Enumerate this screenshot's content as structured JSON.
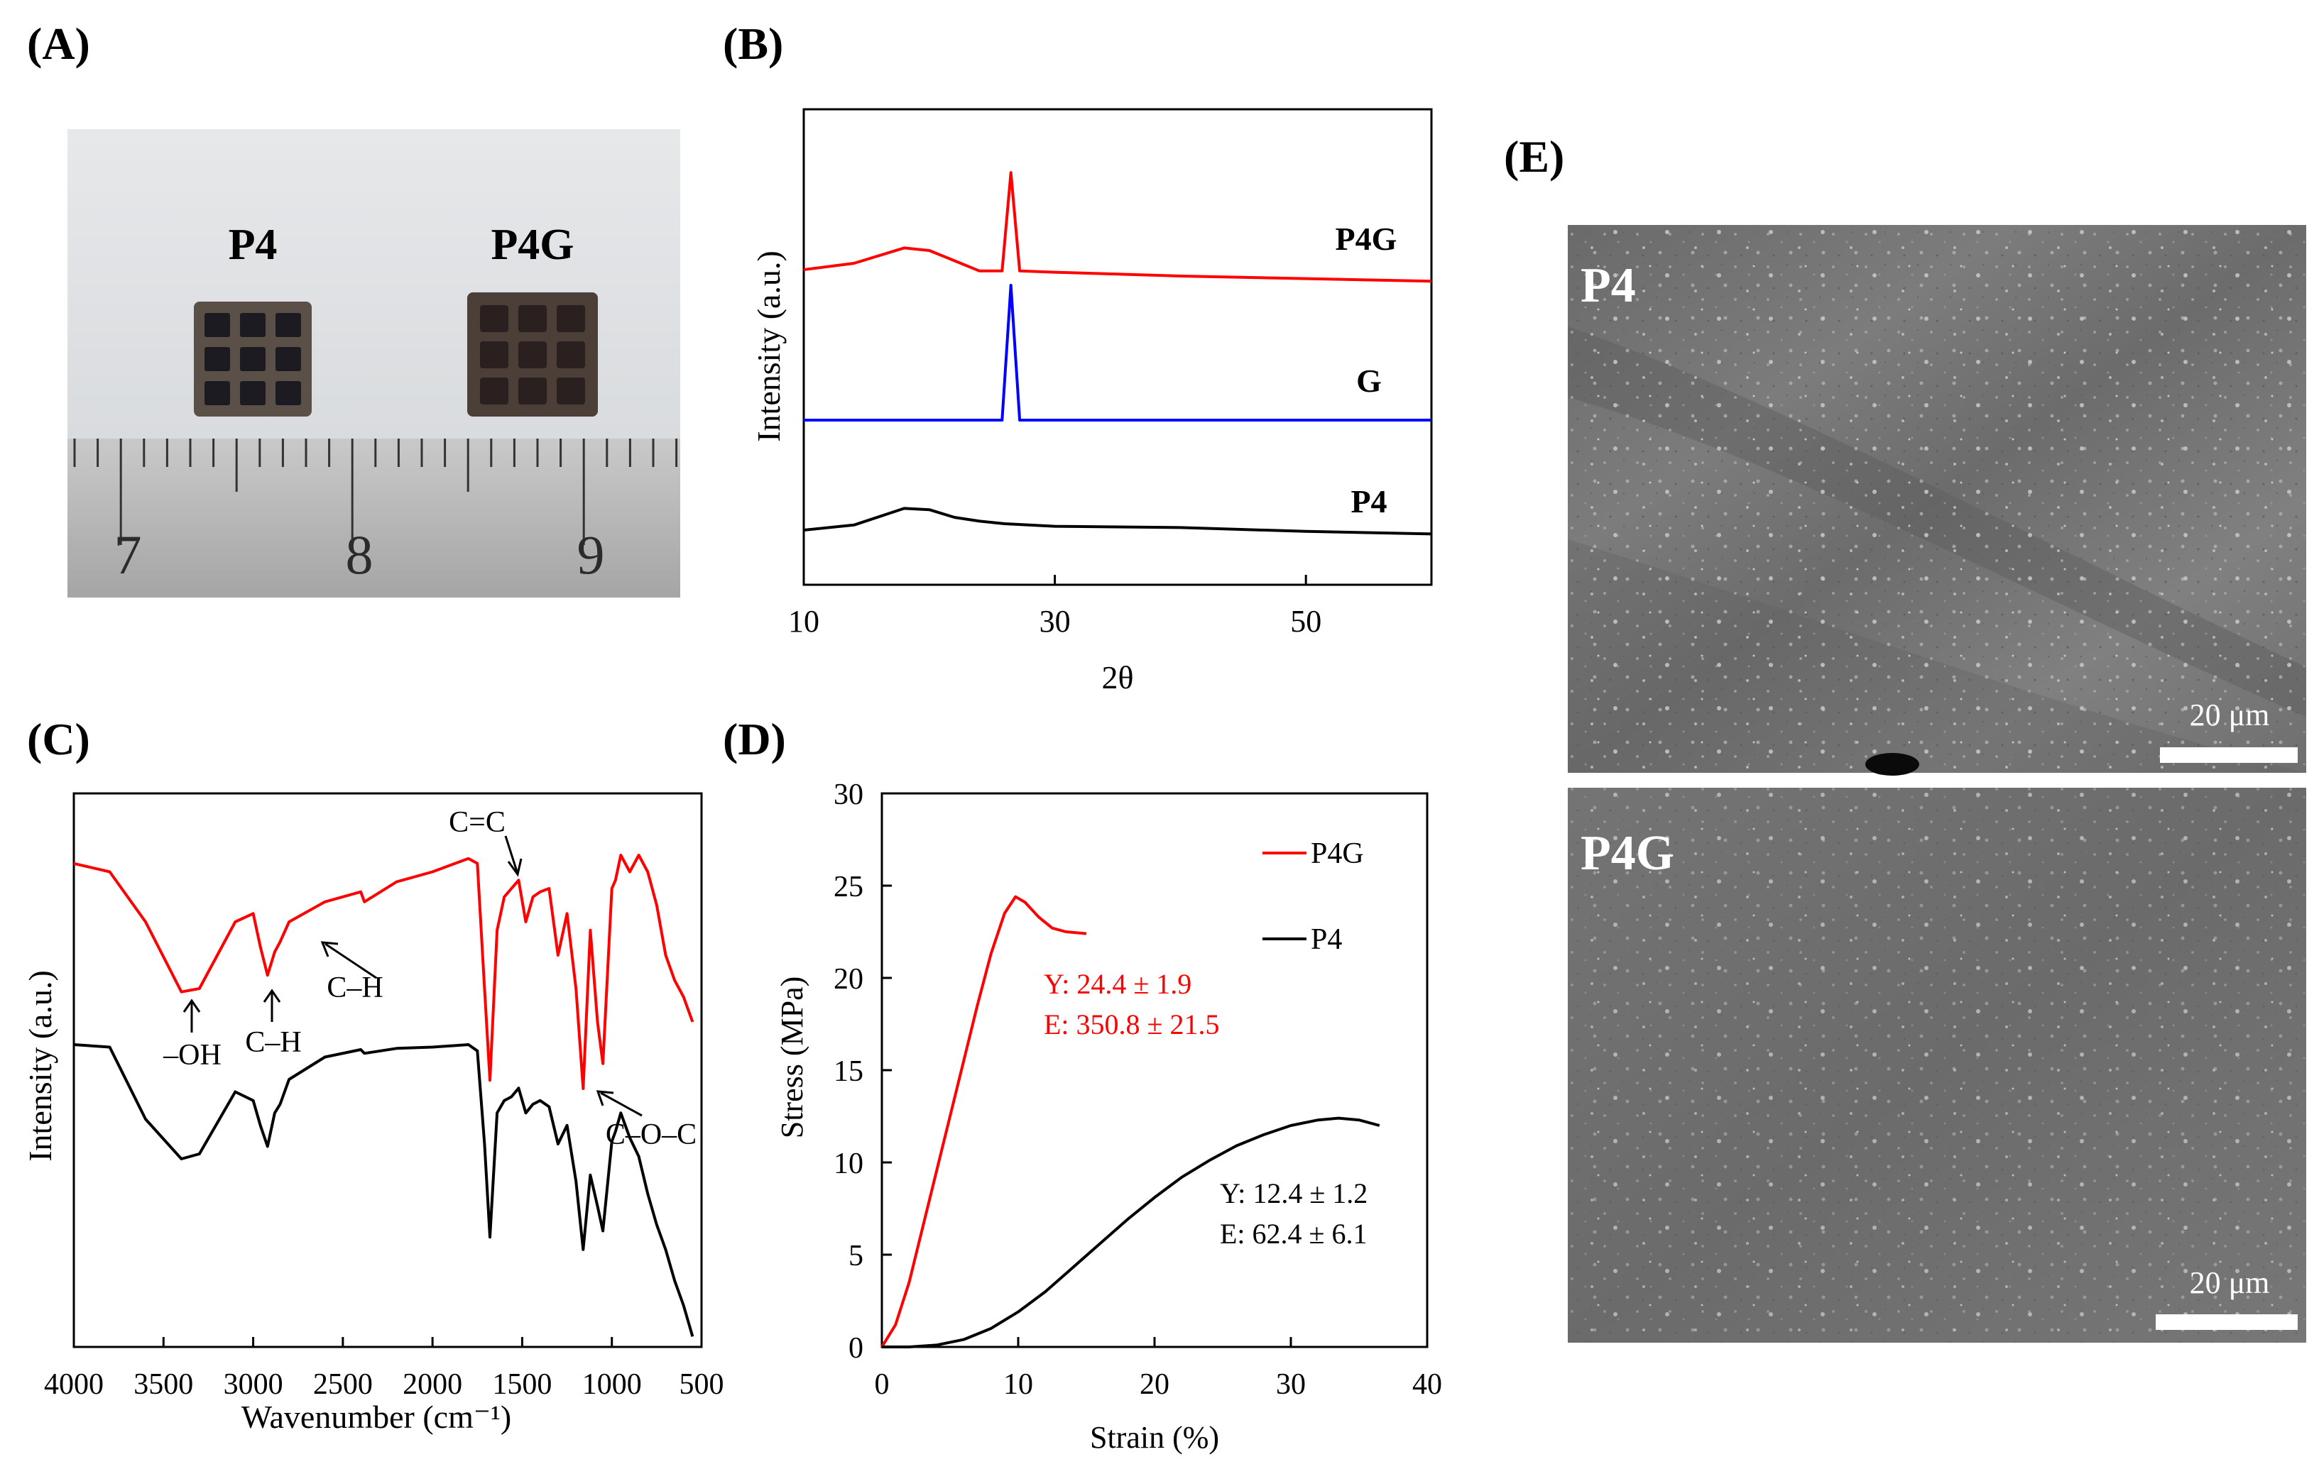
{
  "panels": {
    "a": {
      "label": "(A)",
      "photo_labels": [
        "P4",
        "P4G"
      ],
      "ruler_numbers": [
        "7",
        "8",
        "9"
      ]
    },
    "b": {
      "label": "(B)",
      "colors": {
        "P4G": "#ff0000",
        "G": "#0000ff",
        "P4": "#000000"
      }
    },
    "c": {
      "label": "(C)",
      "annotations": [
        "C=C",
        "C–H",
        "–OH",
        "C–H",
        "C–O–C"
      ],
      "colors": {
        "P4G": "#ff0000",
        "P4": "#000000"
      }
    },
    "d": {
      "label": "(D)",
      "colors": {
        "P4G": "#ff0000",
        "P4": "#000000"
      }
    },
    "e": {
      "label": "(E)",
      "images": [
        {
          "label": "P4",
          "scale_bar": "20 μm"
        },
        {
          "label": "P4G",
          "scale_bar": "20 μm"
        }
      ]
    }
  },
  "chart_data": [
    {
      "panel": "B",
      "type": "line",
      "title": "",
      "xlabel": "2θ",
      "ylabel": "Intensity (a.u.)",
      "xlim": [
        10,
        60
      ],
      "xticks": [
        10,
        30,
        50
      ],
      "series": [
        {
          "name": "P4G",
          "peaks": [
            26.5
          ],
          "x": [
            10,
            14,
            18,
            20,
            22,
            24,
            25.8,
            26.5,
            27.2,
            30,
            40,
            50,
            60
          ],
          "y": [
            0.1,
            0.15,
            0.27,
            0.25,
            0.17,
            0.09,
            0.09,
            0.86,
            0.09,
            0.08,
            0.05,
            0.03,
            0.01
          ]
        },
        {
          "name": "G",
          "peaks": [
            26.5
          ],
          "x": [
            10,
            20,
            25.8,
            26.5,
            27.2,
            30,
            60
          ],
          "y": [
            0,
            0,
            0,
            1.0,
            0,
            0,
            0
          ]
        },
        {
          "name": "P4",
          "x": [
            10,
            14,
            18,
            20,
            22,
            24,
            26,
            30,
            40,
            50,
            60
          ],
          "y": [
            0.05,
            0.09,
            0.22,
            0.21,
            0.15,
            0.12,
            0.1,
            0.08,
            0.07,
            0.04,
            0.02
          ]
        }
      ]
    },
    {
      "panel": "C",
      "type": "line",
      "title": "",
      "xlabel": "Wavenumber (cm⁻¹)",
      "ylabel": "Intensity (a.u.)",
      "xlim": [
        4000,
        500
      ],
      "xticks": [
        4000,
        3500,
        3000,
        2500,
        2000,
        1500,
        1000,
        500
      ],
      "series": [
        {
          "name": "P4G",
          "x": [
            4000,
            3800,
            3600,
            3400,
            3300,
            3100,
            3000,
            2960,
            2920,
            2880,
            2850,
            2800,
            2600,
            2400,
            2380,
            2200,
            2000,
            1800,
            1750,
            1710,
            1680,
            1640,
            1600,
            1560,
            1520,
            1480,
            1440,
            1400,
            1350,
            1300,
            1250,
            1200,
            1160,
            1120,
            1080,
            1050,
            1000,
            980,
            950,
            900,
            850,
            800,
            750,
            700,
            650,
            600,
            550
          ],
          "y": [
            0.05,
            0.1,
            0.4,
            0.82,
            0.8,
            0.4,
            0.35,
            0.55,
            0.72,
            0.58,
            0.52,
            0.4,
            0.28,
            0.22,
            0.28,
            0.16,
            0.1,
            0.02,
            0.05,
            0.8,
            1.35,
            0.45,
            0.25,
            0.2,
            0.15,
            0.4,
            0.25,
            0.22,
            0.2,
            0.6,
            0.35,
            0.8,
            1.4,
            0.45,
            1.0,
            1.25,
            0.2,
            0.15,
            0.0,
            0.1,
            0.0,
            0.1,
            0.3,
            0.6,
            0.75,
            0.85,
            1.0
          ]
        },
        {
          "name": "P4",
          "x": [
            4000,
            3800,
            3600,
            3400,
            3300,
            3100,
            3000,
            2960,
            2920,
            2880,
            2850,
            2800,
            2600,
            2400,
            2380,
            2200,
            2000,
            1800,
            1750,
            1710,
            1680,
            1640,
            1600,
            1560,
            1520,
            1480,
            1440,
            1400,
            1350,
            1300,
            1250,
            1200,
            1160,
            1120,
            1080,
            1050,
            1000,
            980,
            950,
            900,
            850,
            800,
            750,
            700,
            650,
            600,
            550
          ],
          "y": [
            0.0,
            0.02,
            0.6,
            0.92,
            0.88,
            0.38,
            0.45,
            0.65,
            0.82,
            0.55,
            0.48,
            0.28,
            0.1,
            0.04,
            0.07,
            0.03,
            0.02,
            0.0,
            0.05,
            0.8,
            1.55,
            0.55,
            0.45,
            0.42,
            0.35,
            0.55,
            0.48,
            0.45,
            0.5,
            0.8,
            0.65,
            1.1,
            1.65,
            1.05,
            1.3,
            1.5,
            0.78,
            0.7,
            0.55,
            0.75,
            0.9,
            1.2,
            1.45,
            1.65,
            1.9,
            2.1,
            2.35
          ]
        }
      ]
    },
    {
      "panel": "D",
      "type": "line",
      "title": "",
      "xlabel": "Strain (%)",
      "ylabel": "Stress (MPa)",
      "xlim": [
        0,
        40
      ],
      "ylim": [
        0,
        30
      ],
      "xticks": [
        0,
        10,
        20,
        30,
        40
      ],
      "yticks": [
        0,
        5,
        10,
        15,
        20,
        25,
        30
      ],
      "legend": "top-right",
      "series": [
        {
          "name": "P4G",
          "x": [
            0,
            1,
            2,
            3,
            4,
            5,
            6,
            7,
            8,
            9,
            9.8,
            10.5,
            11.5,
            12.5,
            13.5,
            15
          ],
          "y": [
            0,
            1.2,
            3.5,
            6.5,
            9.5,
            12.5,
            15.5,
            18.5,
            21.3,
            23.5,
            24.4,
            24.1,
            23.3,
            22.7,
            22.5,
            22.4
          ]
        },
        {
          "name": "P4",
          "x": [
            0,
            2,
            4,
            6,
            8,
            10,
            12,
            14,
            16,
            18,
            20,
            22,
            24,
            26,
            28,
            30,
            32,
            33.5,
            35,
            36.5
          ],
          "y": [
            0,
            0,
            0.1,
            0.4,
            1.0,
            1.9,
            3.0,
            4.3,
            5.6,
            6.9,
            8.1,
            9.2,
            10.1,
            10.9,
            11.5,
            12.0,
            12.3,
            12.4,
            12.3,
            12.0
          ]
        }
      ],
      "annotations": [
        {
          "series": "P4G",
          "lines": [
            "Y: 24.4 ± 1.9",
            "E: 350.8 ± 21.5"
          ]
        },
        {
          "series": "P4",
          "lines": [
            "Y: 12.4 ± 1.2",
            "E: 62.4 ± 6.1"
          ]
        }
      ]
    }
  ]
}
